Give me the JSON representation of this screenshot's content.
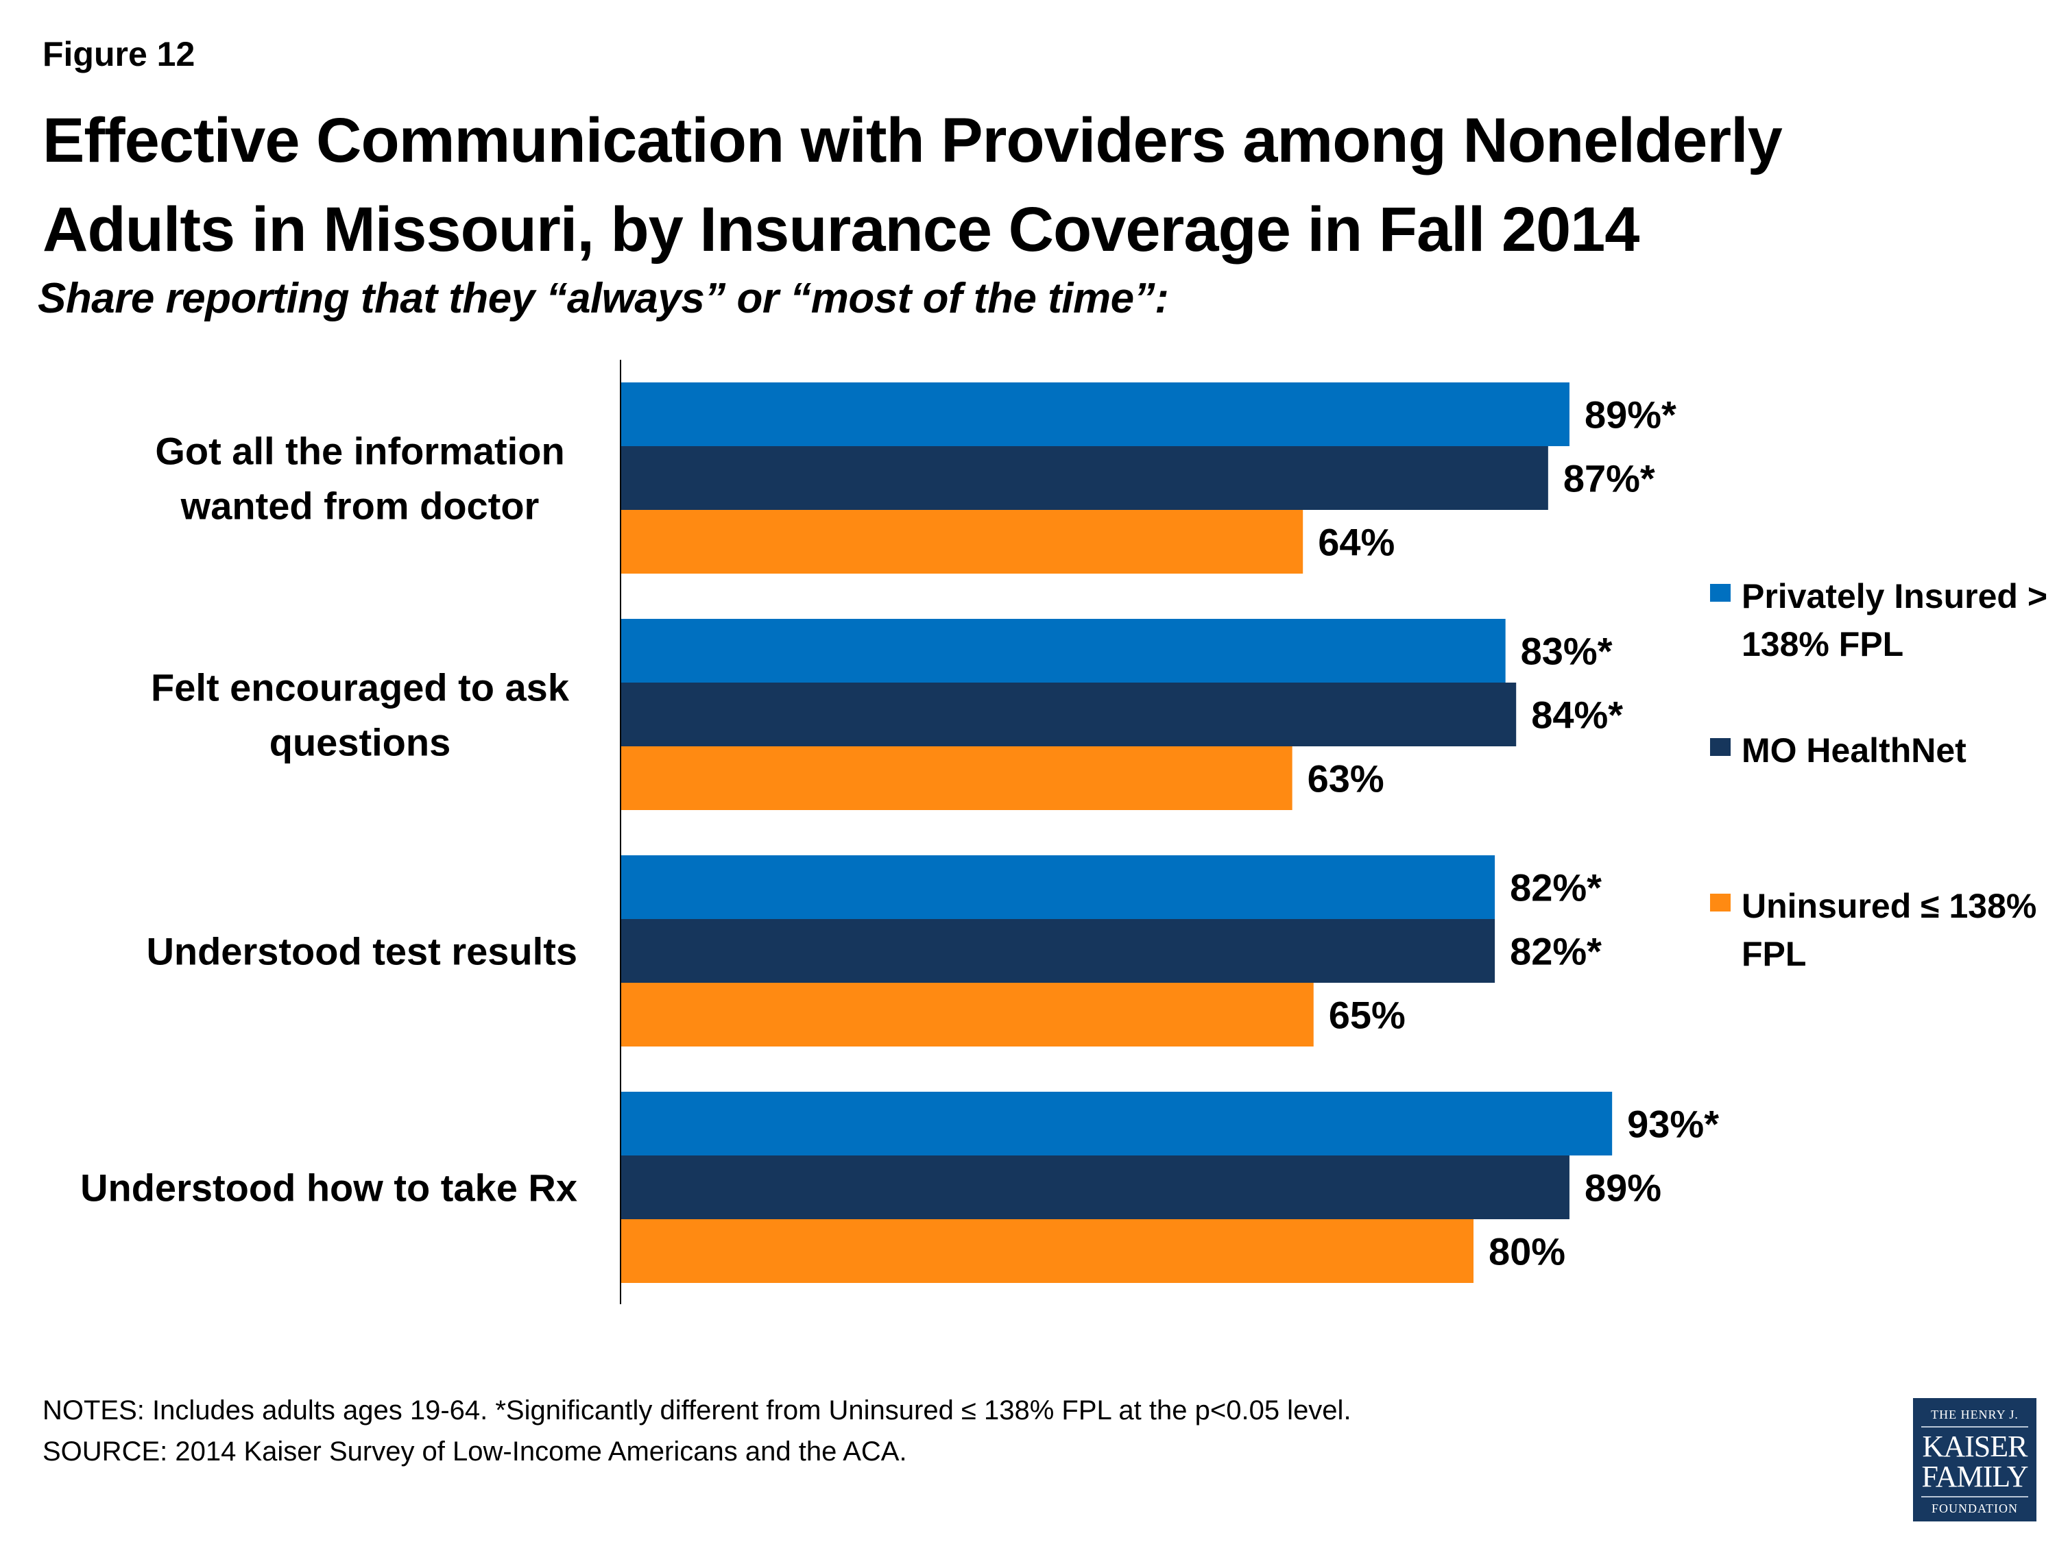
{
  "figure_label": "Figure 12",
  "title": "Effective Communication with Providers among Nonelderly Adults in Missouri, by Insurance Coverage in Fall 2014",
  "subtitle": "Share reporting that they “always” or “most of the time”:",
  "chart_data": {
    "type": "bar",
    "orientation": "horizontal",
    "title": "Effective Communication with Providers among Nonelderly Adults in Missouri, by Insurance Coverage in Fall 2014",
    "subtitle": "Share reporting that they “always” or “most of the time”:",
    "xlabel": "",
    "ylabel": "",
    "xlim": [
      0,
      100
    ],
    "grid": false,
    "legend_position": "right",
    "categories": [
      "Got all the information wanted from doctor",
      "Felt encouraged to ask questions",
      "Understood test results",
      "Understood how to take Rx"
    ],
    "category_lines": [
      [
        "Got all the information",
        "wanted from doctor"
      ],
      [
        "Felt encouraged to ask",
        "questions"
      ],
      [
        "Understood test results"
      ],
      [
        "Understood how to take Rx"
      ]
    ],
    "series": [
      {
        "name": "Privately Insured > 138% FPL",
        "color": "#0070C0",
        "values": [
          89,
          83,
          82,
          93
        ],
        "labels": [
          "89%*",
          "83%*",
          "82%*",
          "93%*"
        ]
      },
      {
        "name": "MO HealthNet",
        "color": "#16365C",
        "values": [
          87,
          84,
          82,
          89
        ],
        "labels": [
          "87%*",
          "84%*",
          "82%*",
          "89%"
        ]
      },
      {
        "name": "Uninsured ≤ 138% FPL",
        "color": "#FF8A12",
        "values": [
          64,
          63,
          65,
          80
        ],
        "labels": [
          "64%",
          "63%",
          "65%",
          "80%"
        ]
      }
    ]
  },
  "legend": {
    "items": [
      {
        "label": "Privately Insured > 138% FPL",
        "color": "#0070C0"
      },
      {
        "label": "MO HealthNet",
        "color": "#16365C"
      },
      {
        "label": "Uninsured ≤ 138% FPL",
        "color": "#FF8A12"
      }
    ]
  },
  "notes": {
    "notes_line": "NOTES: Includes adults ages 19-64. *Significantly different from Uninsured ≤ 138% FPL at the p<0.05 level.",
    "source_line": "SOURCE: 2014 Kaiser Survey of Low-Income Americans and the ACA."
  },
  "logo": {
    "line1": "THE HENRY J.",
    "line2": "KAISER",
    "line3": "FAMILY",
    "line4": "FOUNDATION"
  }
}
